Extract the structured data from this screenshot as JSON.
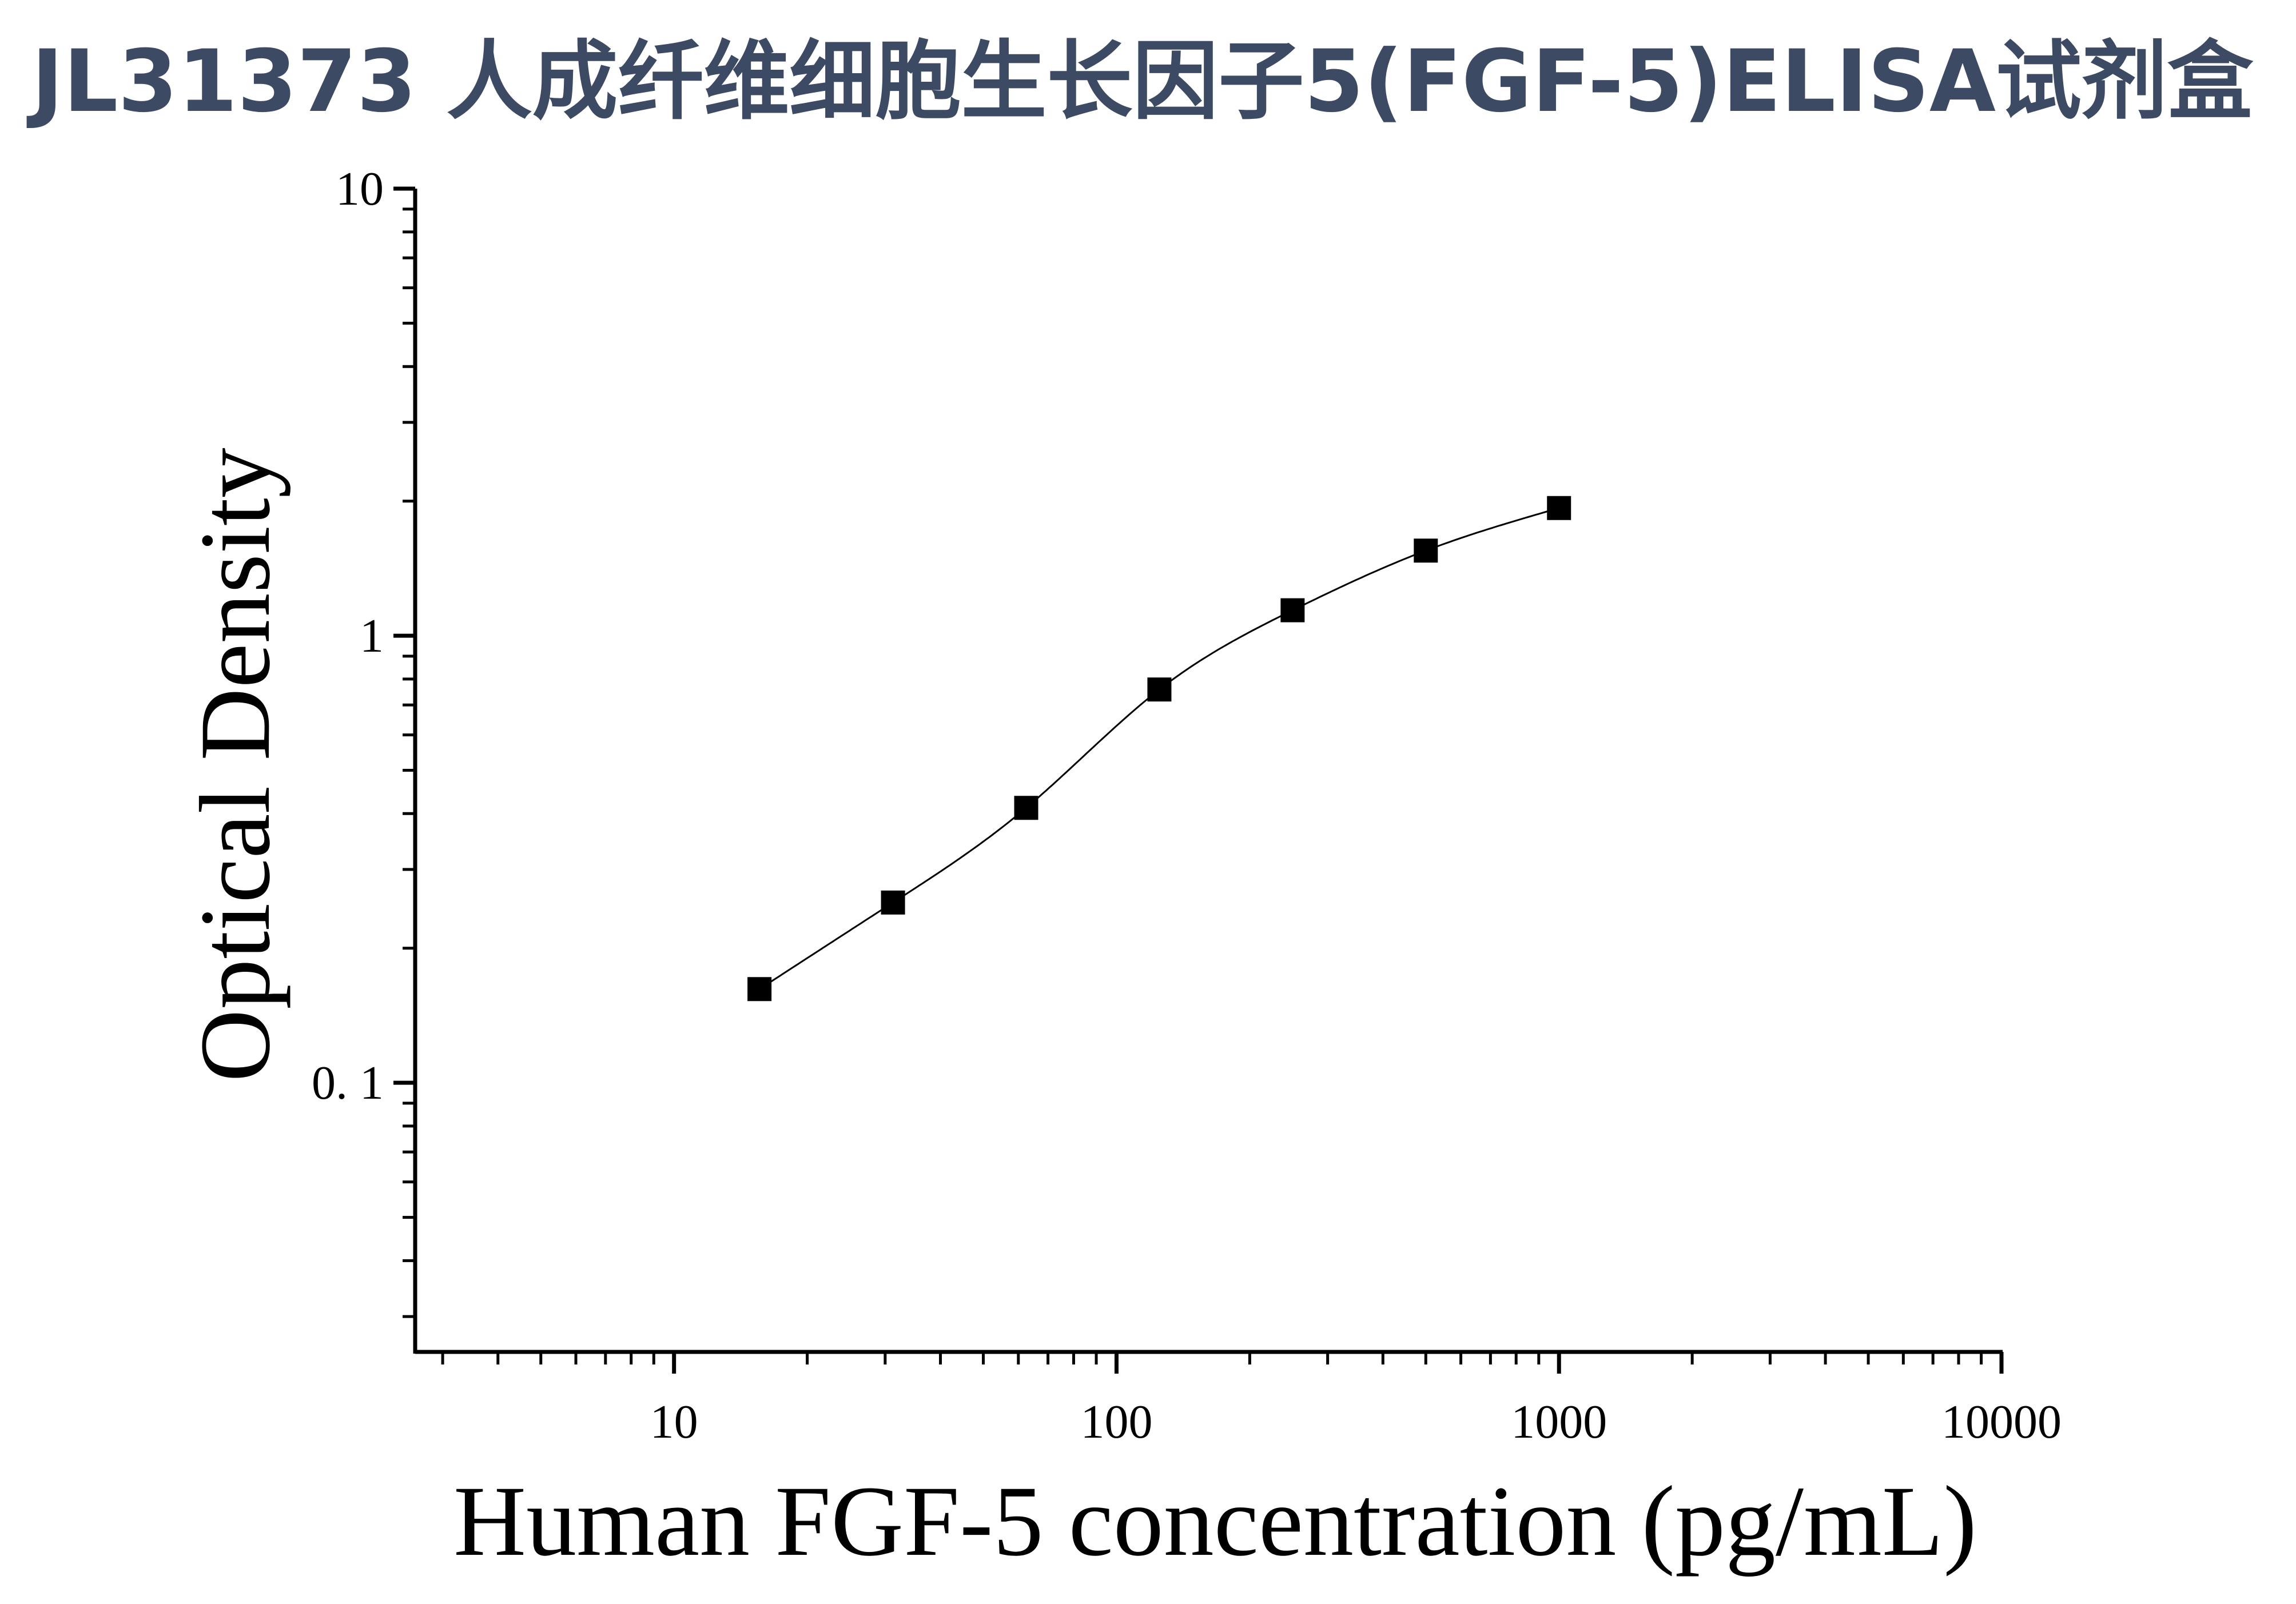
{
  "title": "JL31373 人成纤维细胞生长因子5(FGF-5)ELISA试剂盒",
  "colors": {
    "title": "#3d4a63",
    "axis": "#000000",
    "markers": "#000000",
    "curve": "#000000",
    "background": "#ffffff"
  },
  "chart_data": {
    "type": "scatter",
    "title": "",
    "xlabel": "Human FGF-5 concentration (pg/mL)",
    "ylabel": "Optical Density",
    "x_scale": "log",
    "y_scale": "log",
    "xlim": [
      2.6,
      10000
    ],
    "ylim": [
      0.025,
      10
    ],
    "x_ticks": [
      10,
      100,
      1000,
      10000
    ],
    "x_tick_labels": [
      "10",
      "100",
      "1000",
      "10000"
    ],
    "y_ticks": [
      0.1,
      1,
      10
    ],
    "y_tick_labels": [
      "0. 1",
      "1",
      "10"
    ],
    "grid": false,
    "legend": "none",
    "marker": "square",
    "fit_curve": true,
    "series": [
      {
        "x": [
          15.6,
          31.25,
          62.5,
          125,
          250,
          500,
          1000
        ],
        "y": [
          0.162,
          0.253,
          0.412,
          0.758,
          1.14,
          1.55,
          1.93
        ]
      }
    ]
  }
}
